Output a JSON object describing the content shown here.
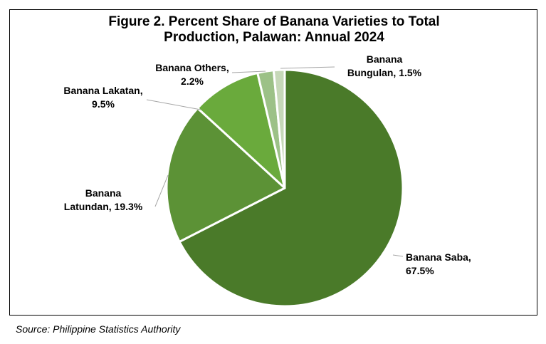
{
  "chart_data": {
    "type": "pie",
    "title_lines": [
      "Figure 2. Percent Share of Banana Varieties to Total",
      "Production, Palawan: Annual 2024"
    ],
    "unit": "%",
    "start_angle_deg": 0,
    "direction": "clockwise",
    "slices": [
      {
        "label_lines": [
          "Banana Saba,",
          "67.5%"
        ],
        "value": 67.5,
        "color": "#4a7a29"
      },
      {
        "label_lines": [
          "Banana",
          "Latundan, 19.3%"
        ],
        "value": 19.3,
        "color": "#5c9236"
      },
      {
        "label_lines": [
          "Banana Lakatan,",
          "9.5%"
        ],
        "value": 9.5,
        "color": "#6aaa3c"
      },
      {
        "label_lines": [
          "Banana Others,",
          "2.2%"
        ],
        "value": 2.2,
        "color": "#9cc187"
      },
      {
        "label_lines": [
          "Banana",
          "Bungulan, 1.5%"
        ],
        "value": 1.5,
        "color": "#c6d8b8"
      }
    ],
    "legend": "none",
    "data_labels": "outside with leader lines"
  },
  "source": "Source: Philippine Statistics Authority"
}
